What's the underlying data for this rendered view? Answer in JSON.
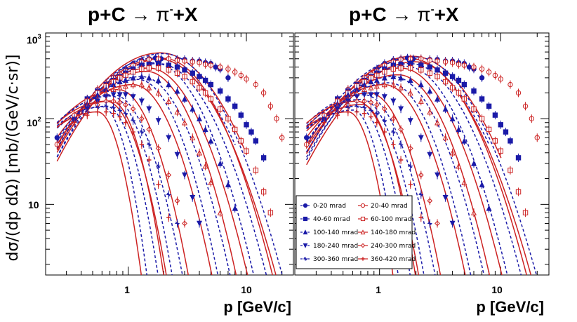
{
  "chart_data": [
    {
      "type": "scatter",
      "title_main": "p+C ",
      "title_arrow": "→",
      "title_pi": " π",
      "title_sup": "-",
      "title_end": "+X",
      "xlabel": "p [GeV/c]",
      "ylabel": "dσ/(dp dΩ) [mb/(GeV/c·sr)]",
      "xscale": "log",
      "yscale": "log",
      "xlim": [
        0.2,
        25
      ],
      "ylim": [
        1.5,
        1000
      ],
      "x_tick_labels": [
        "1",
        "10"
      ],
      "y_tick_labels": [
        "10",
        "10",
        "10"
      ],
      "y_tick_exponents": [
        "3",
        "2",
        ""
      ],
      "series": [
        {
          "name": "0-20 mrad",
          "color": "#1a1aa8",
          "marker": "circle-filled",
          "x": [
            0.25,
            0.35,
            0.45,
            0.55,
            0.65,
            0.75,
            0.85,
            0.95,
            1.1,
            1.3,
            1.5,
            1.7,
            1.9,
            2.2,
            2.6,
            3.0,
            3.5,
            4.0,
            4.5,
            5.0,
            5.5,
            6.0,
            7.0
          ],
          "y": [
            60,
            100,
            160,
            210,
            260,
            300,
            330,
            380,
            440,
            480,
            500,
            510,
            500,
            500,
            490,
            490,
            470,
            470,
            450,
            440,
            400,
            380,
            300
          ]
        },
        {
          "name": "20-40 mrad",
          "color": "#cc2222",
          "marker": "circle-open",
          "x": [
            0.25,
            0.35,
            0.45,
            0.55,
            0.65,
            0.75,
            0.85,
            0.95,
            1.1,
            1.3,
            1.5,
            1.8,
            2.2,
            2.6,
            3.0,
            3.5,
            4.0,
            4.5,
            5.0,
            6.0,
            7.0,
            8.0,
            9.0,
            10,
            12,
            14,
            16,
            18,
            20
          ],
          "y": [
            50,
            110,
            170,
            220,
            260,
            300,
            330,
            360,
            420,
            460,
            490,
            500,
            500,
            480,
            470,
            460,
            450,
            430,
            420,
            400,
            380,
            350,
            320,
            290,
            250,
            200,
            140,
            100,
            60
          ]
        },
        {
          "name": "40-60 mrad",
          "color": "#1a1aa8",
          "marker": "square-filled",
          "x": [
            0.45,
            0.55,
            0.65,
            0.75,
            0.85,
            0.95,
            1.1,
            1.3,
            1.5,
            1.8,
            2.2,
            2.6,
            3.0,
            3.5,
            4.0,
            4.5,
            5.0,
            6.0,
            7.0,
            8.0,
            9.0,
            10,
            11,
            12,
            14
          ],
          "y": [
            170,
            210,
            250,
            280,
            310,
            340,
            380,
            420,
            430,
            440,
            420,
            400,
            370,
            340,
            310,
            280,
            250,
            210,
            170,
            140,
            110,
            85,
            70,
            55,
            35
          ]
        },
        {
          "name": "60-100 mrad",
          "color": "#cc2222",
          "marker": "square-open",
          "x": [
            0.45,
            0.55,
            0.65,
            0.75,
            0.85,
            0.95,
            1.1,
            1.3,
            1.5,
            1.8,
            2.2,
            2.6,
            3.0,
            3.5,
            4.0,
            4.5,
            5.0,
            6.0,
            7.0,
            8.0,
            9.0,
            10,
            12,
            14,
            16
          ],
          "y": [
            160,
            200,
            240,
            270,
            300,
            320,
            350,
            380,
            390,
            390,
            370,
            340,
            310,
            270,
            230,
            200,
            170,
            130,
            100,
            75,
            55,
            42,
            25,
            14,
            8
          ]
        },
        {
          "name": "100-140 mrad",
          "color": "#1a1aa8",
          "marker": "triangle-up-filled",
          "x": [
            0.45,
            0.55,
            0.65,
            0.75,
            0.85,
            0.95,
            1.1,
            1.3,
            1.5,
            1.8,
            2.2,
            2.6,
            3.0,
            3.5,
            4.0,
            4.5,
            5.0,
            6.0,
            7.0,
            8.0
          ],
          "y": [
            150,
            190,
            220,
            250,
            270,
            280,
            300,
            310,
            300,
            280,
            250,
            210,
            170,
            130,
            100,
            75,
            55,
            30,
            17,
            9
          ]
        },
        {
          "name": "140-180 mrad",
          "color": "#cc2222",
          "marker": "triangle-up-open",
          "x": [
            0.45,
            0.55,
            0.65,
            0.75,
            0.85,
            0.95,
            1.1,
            1.3,
            1.5,
            1.8,
            2.2,
            2.6,
            3.0,
            3.5,
            4.0,
            4.5,
            5.0,
            6.0
          ],
          "y": [
            140,
            170,
            200,
            220,
            230,
            240,
            250,
            250,
            230,
            200,
            160,
            120,
            90,
            60,
            40,
            28,
            18,
            8
          ]
        },
        {
          "name": "180-240 mrad",
          "color": "#1a1aa8",
          "marker": "triangle-down-filled",
          "x": [
            0.45,
            0.55,
            0.65,
            0.75,
            0.85,
            0.95,
            1.1,
            1.3,
            1.5,
            1.8,
            2.2,
            2.6,
            3.0,
            3.5,
            4.0
          ],
          "y": [
            130,
            160,
            180,
            190,
            190,
            190,
            180,
            160,
            130,
            95,
            60,
            38,
            22,
            12,
            6
          ]
        },
        {
          "name": "240-300 mrad",
          "color": "#cc2222",
          "marker": "diamond-open",
          "x": [
            0.45,
            0.55,
            0.65,
            0.75,
            0.85,
            0.95,
            1.1,
            1.3,
            1.5,
            1.8,
            2.2,
            2.6,
            3.0
          ],
          "y": [
            120,
            145,
            160,
            160,
            155,
            145,
            130,
            100,
            75,
            45,
            22,
            11,
            6
          ]
        },
        {
          "name": "300-360 mrad",
          "color": "#1a1aa8",
          "marker": "star",
          "x": [
            0.35,
            0.45,
            0.55,
            0.65,
            0.75,
            0.85,
            0.95,
            1.1,
            1.3,
            1.5,
            1.8,
            2.2,
            2.6
          ],
          "y": [
            100,
            120,
            135,
            140,
            135,
            125,
            115,
            95,
            70,
            50,
            28,
            13,
            6
          ]
        },
        {
          "name": "360-420 mrad",
          "color": "#cc2222",
          "marker": "cross",
          "x": [
            0.35,
            0.45,
            0.55,
            0.65,
            0.75,
            0.85,
            0.95,
            1.1,
            1.3,
            1.5,
            1.8,
            2.2
          ],
          "y": [
            90,
            110,
            120,
            120,
            115,
            105,
            90,
            70,
            50,
            33,
            17,
            7
          ]
        }
      ]
    },
    {
      "type": "scatter",
      "title_main": "p+C ",
      "title_arrow": "→",
      "title_pi": " π",
      "title_sup": "-",
      "title_end": "+X",
      "xlabel": "p [GeV/c]",
      "xscale": "log",
      "yscale": "log",
      "xlim": [
        0.2,
        25
      ],
      "ylim": [
        1.5,
        1000
      ],
      "x_tick_labels": [
        "1",
        "10"
      ],
      "legend": {
        "position": "bottom-left",
        "entries": [
          "0-20 mrad",
          "20-40 mrad",
          "40-60 mrad",
          "60-100 mrad",
          "100-140 mrad",
          "140-180 mrad",
          "180-240 mrad",
          "240-300 mrad",
          "300-360 mrad",
          "360-420 mrad"
        ]
      }
    }
  ]
}
